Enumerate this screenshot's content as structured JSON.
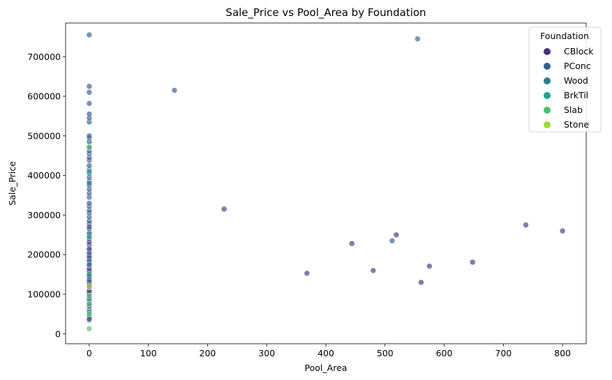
{
  "chart_data": {
    "type": "scatter",
    "title": "Sale_Price vs Pool_Area by Foundation",
    "xlabel": "Pool_Area",
    "ylabel": "Sale_Price",
    "xlim": [
      -40,
      840
    ],
    "ylim": [
      -25000,
      785000
    ],
    "xticks": [
      0,
      100,
      200,
      300,
      400,
      500,
      600,
      700,
      800
    ],
    "yticks": [
      0,
      100000,
      200000,
      300000,
      400000,
      500000,
      600000,
      700000
    ],
    "grid": false,
    "legend": {
      "title": "Foundation",
      "placement": "top-right",
      "entries": [
        {
          "name": "CBlock",
          "color": "#46327e"
        },
        {
          "name": "PConc",
          "color": "#365c8d"
        },
        {
          "name": "Wood",
          "color": "#277f8e"
        },
        {
          "name": "BrkTil",
          "color": "#1fa187"
        },
        {
          "name": "Slab",
          "color": "#4ac16d"
        },
        {
          "name": "Stone",
          "color": "#a0da39"
        }
      ]
    },
    "point_alpha": 0.65,
    "series": [
      {
        "name": "CBlock",
        "x": [
          0,
          0,
          0,
          0,
          0,
          0,
          0,
          0,
          0,
          0,
          0,
          0,
          0,
          0,
          0,
          0,
          0,
          0,
          0,
          0,
          0,
          0,
          0,
          0,
          0,
          0,
          0,
          228,
          368,
          444,
          480,
          519,
          561,
          575,
          648,
          738,
          800
        ],
        "y": [
          35000,
          45000,
          60000,
          70000,
          78000,
          85000,
          92000,
          100000,
          105000,
          110000,
          118000,
          125000,
          130000,
          140000,
          148000,
          155000,
          160000,
          165000,
          172000,
          180000,
          190000,
          200000,
          212000,
          225000,
          232000,
          250000,
          278000,
          315000,
          153000,
          228000,
          160000,
          250000,
          130000,
          171000,
          181000,
          275000,
          260000
        ]
      },
      {
        "name": "PConc",
        "x": [
          0,
          0,
          0,
          0,
          0,
          0,
          0,
          0,
          0,
          0,
          0,
          0,
          0,
          0,
          0,
          0,
          0,
          0,
          0,
          0,
          0,
          0,
          0,
          0,
          0,
          0,
          0,
          0,
          0,
          0,
          0,
          0,
          0,
          0,
          0,
          0,
          0,
          0,
          0,
          0,
          0,
          144,
          512,
          555
        ],
        "y": [
          38000,
          135000,
          145000,
          185000,
          195000,
          205000,
          215000,
          240000,
          255000,
          265000,
          270000,
          285000,
          295000,
          305000,
          312000,
          322000,
          330000,
          345000,
          355000,
          365000,
          375000,
          385000,
          395000,
          405000,
          415000,
          425000,
          438000,
          445000,
          455000,
          462000,
          470000,
          485000,
          495000,
          500000,
          535000,
          545000,
          555000,
          582000,
          610000,
          625000,
          755000,
          615000,
          235000,
          745000
        ]
      },
      {
        "name": "Wood",
        "x": [
          0,
          0
        ],
        "y": [
          175000,
          380000
        ]
      },
      {
        "name": "BrkTil",
        "x": [
          0,
          0,
          0,
          0,
          0
        ],
        "y": [
          55000,
          88000,
          150000,
          245000,
          410000
        ]
      },
      {
        "name": "Slab",
        "x": [
          0,
          0,
          0,
          0,
          0
        ],
        "y": [
          13000,
          50000,
          75000,
          95000,
          472000
        ]
      },
      {
        "name": "Stone",
        "x": [
          0
        ],
        "y": [
          120000
        ]
      }
    ]
  }
}
